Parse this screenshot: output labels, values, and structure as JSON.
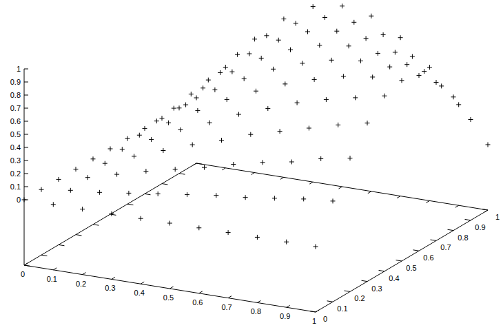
{
  "chart_data": {
    "type": "scatter3d",
    "marker": "plus",
    "color": "#000000",
    "x": [
      0,
      0.1,
      0.2,
      0.3,
      0.4,
      0.5,
      0.6,
      0.7,
      0.8,
      0.9,
      1
    ],
    "y": [
      0,
      0.1,
      0.2,
      0.3,
      0.4,
      0.5,
      0.6,
      0.7,
      0.8,
      0.9,
      1
    ],
    "z": [
      [
        0,
        0,
        0,
        0,
        0,
        0,
        0,
        0,
        0,
        0,
        0
      ],
      [
        0,
        0.03,
        0.05,
        0.08,
        0.11,
        0.14,
        0.17,
        0.19,
        0.22,
        0.25,
        0.27
      ],
      [
        0,
        0.05,
        0.11,
        0.17,
        0.22,
        0.27,
        0.33,
        0.38,
        0.42,
        0.48,
        0.52
      ],
      [
        0,
        0.08,
        0.17,
        0.25,
        0.33,
        0.4,
        0.48,
        0.54,
        0.6,
        0.66,
        0.71
      ],
      [
        0,
        0.11,
        0.22,
        0.33,
        0.42,
        0.52,
        0.6,
        0.68,
        0.74,
        0.79,
        0.84
      ],
      [
        0,
        0.14,
        0.27,
        0.4,
        0.52,
        0.62,
        0.71,
        0.78,
        0.84,
        0.87,
        0.88
      ],
      [
        0,
        0.17,
        0.33,
        0.48,
        0.6,
        0.71,
        0.79,
        0.85,
        0.88,
        0.87,
        0.84
      ],
      [
        0,
        0.19,
        0.38,
        0.54,
        0.68,
        0.78,
        0.85,
        0.88,
        0.86,
        0.81,
        0.71
      ],
      [
        0,
        0.22,
        0.42,
        0.6,
        0.74,
        0.84,
        0.88,
        0.86,
        0.79,
        0.68,
        0.52
      ],
      [
        0,
        0.25,
        0.48,
        0.66,
        0.79,
        0.87,
        0.87,
        0.81,
        0.68,
        0.49,
        0.27
      ],
      [
        0,
        0.27,
        0.52,
        0.71,
        0.84,
        0.88,
        0.84,
        0.71,
        0.52,
        0.27,
        0
      ]
    ],
    "xlim": [
      0,
      1
    ],
    "ylim": [
      0,
      1
    ],
    "zlim": [
      0,
      1
    ],
    "xticks": [
      0,
      0.1,
      0.2,
      0.3,
      0.4,
      0.5,
      0.6,
      0.7,
      0.8,
      0.9,
      1
    ],
    "yticks": [
      0,
      0.1,
      0.2,
      0.3,
      0.4,
      0.5,
      0.6,
      0.7,
      0.8,
      0.9,
      1
    ],
    "zticks": [
      0,
      0.1,
      0.2,
      0.3,
      0.4,
      0.5,
      0.6,
      0.7,
      0.8,
      0.9,
      1
    ]
  }
}
